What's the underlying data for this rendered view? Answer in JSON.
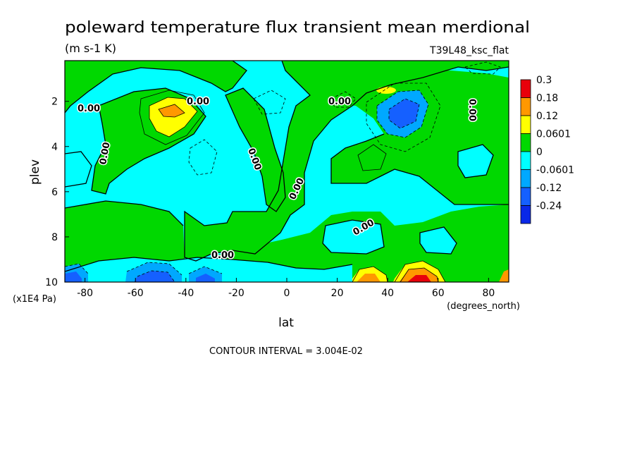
{
  "chart_data": {
    "type": "heatmap",
    "title": "poleward temperature flux transient mean merdional",
    "units": "(m s-1 K)",
    "dataset": "T39L48_ksc_flat",
    "xlabel": "lat",
    "x_units": "(degrees_north)",
    "ylabel": "plev",
    "y_units": "(x1E4 Pa)",
    "xlim": [
      -88,
      88
    ],
    "ylim": [
      10,
      0.2
    ],
    "x_ticks": [
      "-80",
      "-60",
      "-40",
      "-20",
      "0",
      "20",
      "40",
      "60",
      "80"
    ],
    "y_ticks": [
      "2",
      "4",
      "6",
      "8",
      "10"
    ],
    "contour_interval_text": "CONTOUR INTERVAL = 3.004E-02",
    "contour_label": "0.00",
    "colorbar": {
      "levels": [
        "0.3",
        "0.18",
        "0.12",
        "0.0601",
        "0",
        "-0.0601",
        "-0.12",
        "-0.24"
      ],
      "colors": [
        "#e8000b",
        "#ff9800",
        "#ffff00",
        "#00d800",
        "#00ffff",
        "#00a8ff",
        "#1560ff",
        "#0a28e8"
      ]
    },
    "features": [
      {
        "lat": -48,
        "plev": 2.5,
        "value": 0.12
      },
      {
        "lat": 50,
        "plev": 2.5,
        "value": -0.12
      },
      {
        "lat": 52,
        "plev": 9.9,
        "value": 0.3
      },
      {
        "lat": 30,
        "plev": 9.9,
        "value": 0.18
      },
      {
        "lat": -58,
        "plev": 9.8,
        "value": -0.12
      },
      {
        "lat": -85,
        "plev": 9.8,
        "value": -0.12
      },
      {
        "lat": -35,
        "plev": 9.8,
        "value": -0.12
      }
    ]
  }
}
